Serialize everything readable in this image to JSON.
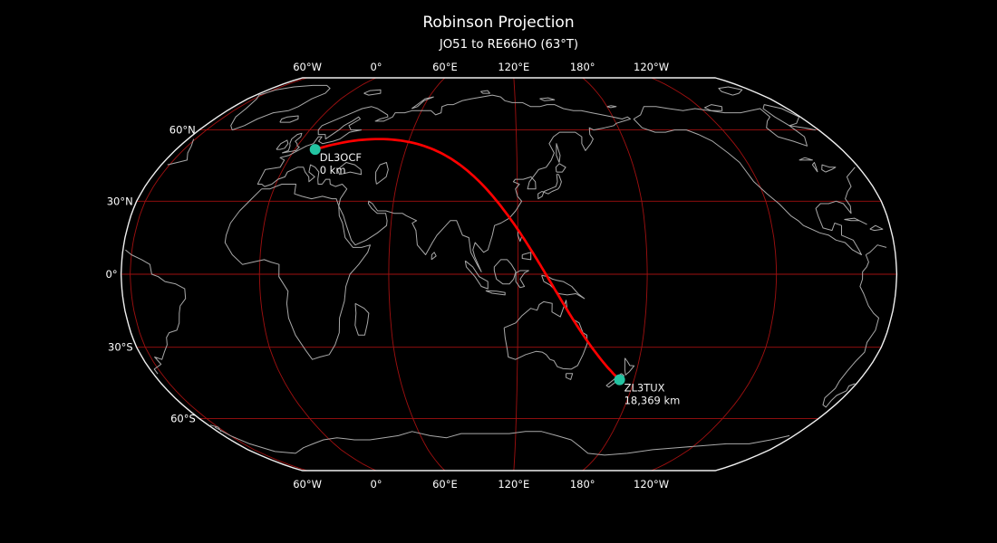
{
  "figure": {
    "title": "Robinson Projection",
    "subtitle": "JO51 to RE66HO (63°T)"
  },
  "projection": {
    "name": "Robinson",
    "central_meridian_deg": 115.8
  },
  "graticule": {
    "lon_lines_deg": [
      -120,
      -60,
      0,
      60,
      120,
      180
    ],
    "lat_lines_deg": [
      -60,
      -30,
      0,
      30,
      60
    ],
    "lon_tick_labels": [
      {
        "text": "60°W",
        "lon": -60
      },
      {
        "text": "0°",
        "lon": 0
      },
      {
        "text": "60°E",
        "lon": 60
      },
      {
        "text": "120°E",
        "lon": 120
      },
      {
        "text": "180°",
        "lon": 180
      },
      {
        "text": "120°W",
        "lon": -120
      }
    ],
    "lat_tick_labels": [
      {
        "text": "60°N",
        "lat": 60
      },
      {
        "text": "30°N",
        "lat": 30
      },
      {
        "text": "0°",
        "lat": 0
      },
      {
        "text": "30°S",
        "lat": -30
      },
      {
        "text": "60°S",
        "lat": -60
      }
    ]
  },
  "stations": [
    {
      "callsign": "DL3OCF",
      "distance_label": "0 km",
      "lat": 51.5,
      "lon": 11.0
    },
    {
      "callsign": "ZL3TUX",
      "distance_label": "18,369 km",
      "lat": -43.4,
      "lon": 172.6
    }
  ],
  "path": {
    "from_grid": "JO51",
    "to_grid": "RE66HO",
    "bearing_label": "63°T"
  },
  "colors": {
    "background": "#000000",
    "border": "#f0f0f0",
    "graticule": "#a01010",
    "coastline": "#a9a9a9",
    "path": "#ff0000",
    "marker": "#23c4a2",
    "tick_text": "#ffffff",
    "label_text": "#f2f2f2"
  }
}
